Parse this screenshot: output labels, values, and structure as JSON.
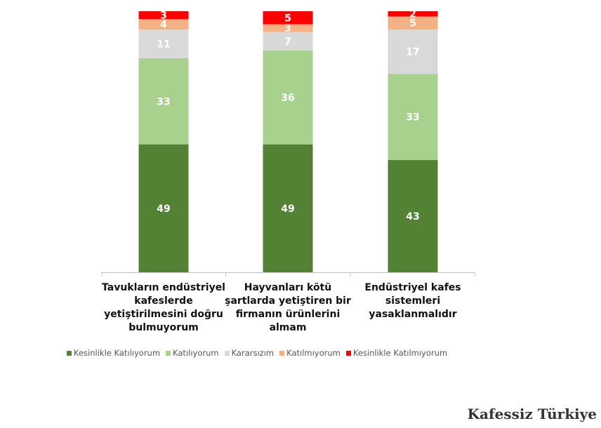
{
  "chart_data": {
    "type": "bar",
    "stacked": true,
    "categories": [
      "Tavukların endüstriyel kafeslerde yetiştirilmesini doğru bulmuyorum",
      "Hayvanları kötü şartlarda yetiştiren bir firmanın ürünlerini almam",
      "Endüstriyel kafes sistemleri yasaklanmalıdır"
    ],
    "category_lines": [
      [
        "Tavukların endüstriyel",
        "kafeslerde",
        "yetiştirilmesini doğru",
        "bulmuyorum"
      ],
      [
        "Hayvanları kötü",
        "şartlarda yetiştiren bir",
        "firmanın ürünlerini",
        "almam"
      ],
      [
        "Endüstriyel kafes",
        "sistemleri",
        "yasaklanmalıdır"
      ]
    ],
    "series": [
      {
        "name": "Kesinlikle Katılıyorum",
        "color": "#548235",
        "values": [
          49,
          49,
          43
        ]
      },
      {
        "name": "Katılıyorum",
        "color": "#a9d18e",
        "values": [
          33,
          36,
          33
        ]
      },
      {
        "name": "Kararsızım",
        "color": "#d9d9d9",
        "values": [
          11,
          7,
          17
        ]
      },
      {
        "name": "Katılmıyorum",
        "color": "#f4b183",
        "values": [
          4,
          3,
          5
        ]
      },
      {
        "name": "Kesinlikle Katılmıyorum",
        "color": "#ff0000",
        "values": [
          3,
          5,
          2
        ]
      }
    ],
    "ylim": [
      0,
      100
    ],
    "grid": false,
    "legend_position": "bottom"
  },
  "brand": "Kafessiz Türkiye"
}
